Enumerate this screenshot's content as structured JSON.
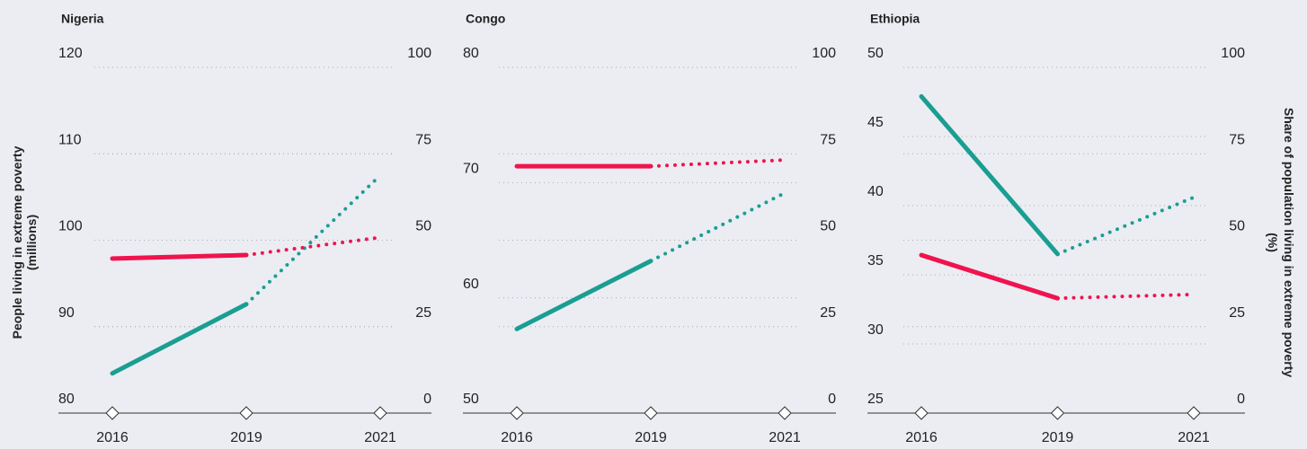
{
  "chart_data": [
    {
      "type": "line",
      "title": "Nigeria",
      "ylabel": [
        "People living in extreme poverty",
        "(millions)"
      ],
      "categories": [
        "2016",
        "2019",
        "2021"
      ],
      "projected_from": "2019",
      "ylim": [
        80,
        120
      ],
      "yticks": [
        80,
        90,
        100,
        110,
        120
      ],
      "y2lim": [
        0,
        100
      ],
      "y2ticks": [
        0,
        25,
        50,
        75,
        100
      ],
      "grid": true,
      "series": [
        {
          "color": "#1a9e92",
          "values": [
            84.6,
            92.6,
            107.5
          ]
        },
        {
          "color": "#f0134d",
          "axis": "y2",
          "values": [
            44.7,
            45.7,
            50.8
          ]
        }
      ]
    },
    {
      "type": "line",
      "title": "Congo",
      "categories": [
        "2016",
        "2019",
        "2021"
      ],
      "projected_from": "2019",
      "ylim": [
        50,
        80
      ],
      "yticks": [
        50,
        60,
        70,
        80
      ],
      "y2lim": [
        0,
        100
      ],
      "y2ticks": [
        0,
        25,
        50,
        75,
        100
      ],
      "grid": true,
      "series": [
        {
          "color": "#1a9e92",
          "values": [
            57.3,
            63.2,
            69.1
          ]
        },
        {
          "color": "#f0134d",
          "axis": "y2",
          "values": [
            71.4,
            71.4,
            73.2
          ]
        }
      ]
    },
    {
      "type": "line",
      "title": "Ethiopia",
      "y2label": [
        "Share of population living in extreme poverty",
        "(%)"
      ],
      "categories": [
        "2016",
        "2019",
        "2021"
      ],
      "projected_from": "2019",
      "ylim": [
        25,
        50
      ],
      "yticks": [
        25,
        30,
        35,
        40,
        45,
        50
      ],
      "y2lim": [
        0,
        100
      ],
      "y2ticks": [
        0,
        25,
        50,
        75,
        100
      ],
      "grid": true,
      "series": [
        {
          "color": "#1a9e92",
          "values": [
            47.9,
            36.5,
            40.6
          ]
        },
        {
          "color": "#f0134d",
          "axis": "y2",
          "values": [
            45.7,
            33.2,
            34.3
          ]
        }
      ]
    }
  ]
}
